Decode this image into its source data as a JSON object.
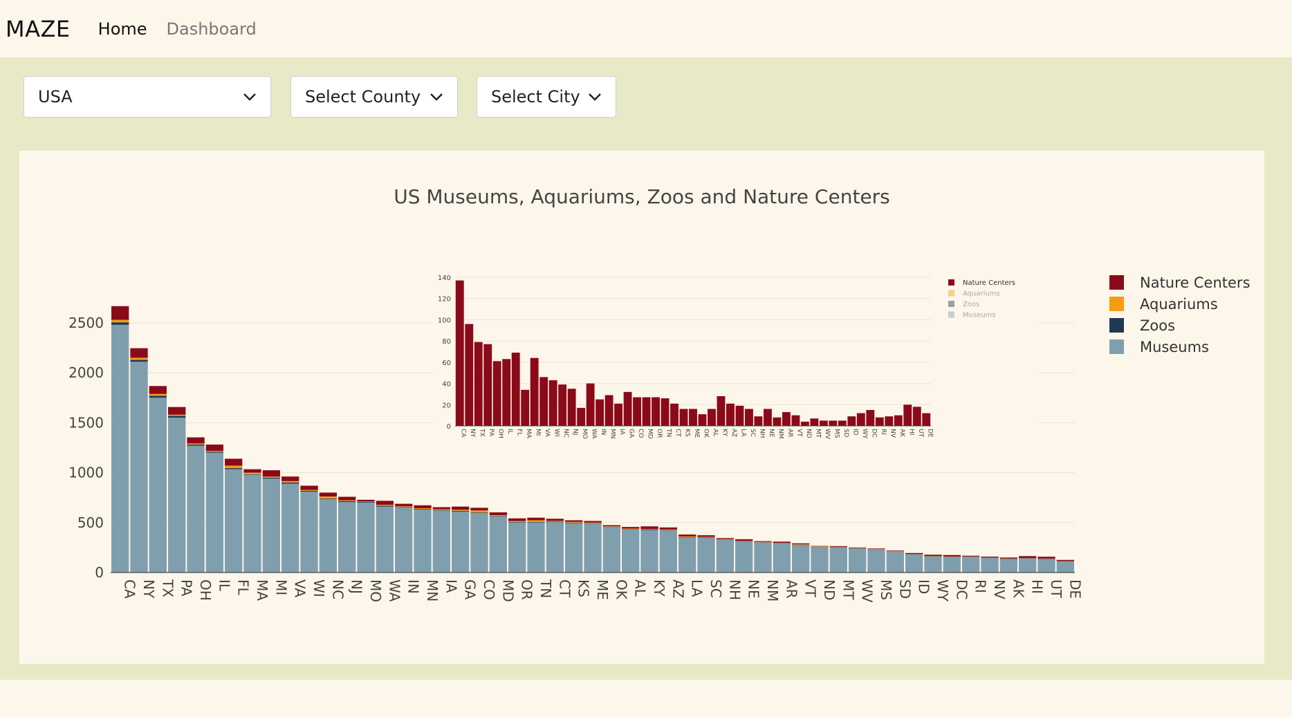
{
  "navbar": {
    "brand": "MAZE",
    "links": [
      "Home",
      "Dashboard"
    ]
  },
  "filters": {
    "country": "USA",
    "county": "Select County",
    "city": "Select City"
  },
  "colors": {
    "nature": "#8b0a1a",
    "aquariums": "#f59c12",
    "zoos": "#1e3a52",
    "museums": "#7f9fae"
  },
  "chart_data": [
    {
      "type": "bar",
      "stacked": true,
      "title": "US Museums, Aquariums, Zoos and Nature Centers",
      "ylim": [
        0,
        2700
      ],
      "yticks": [
        0,
        500,
        1000,
        1500,
        2000,
        2500
      ],
      "legend_position": "right",
      "categories": [
        "CA",
        "NY",
        "TX",
        "PA",
        "OH",
        "IL",
        "FL",
        "MA",
        "MI",
        "VA",
        "WI",
        "NC",
        "NJ",
        "MO",
        "WA",
        "IN",
        "MN",
        "IA",
        "GA",
        "CO",
        "MD",
        "OR",
        "TN",
        "CT",
        "KS",
        "ME",
        "OK",
        "AL",
        "KY",
        "AZ",
        "LA",
        "SC",
        "NH",
        "NE",
        "NM",
        "AR",
        "VT",
        "ND",
        "MT",
        "WV",
        "MS",
        "SD",
        "ID",
        "WY",
        "DC",
        "RI",
        "NV",
        "AK",
        "HI",
        "UT",
        "DE"
      ],
      "series": [
        {
          "name": "Museums",
          "values": [
            2480,
            2110,
            1750,
            1550,
            1270,
            1200,
            1035,
            980,
            940,
            890,
            810,
            735,
            705,
            700,
            660,
            650,
            630,
            620,
            610,
            595,
            560,
            500,
            500,
            505,
            495,
            490,
            455,
            430,
            425,
            420,
            350,
            350,
            330,
            310,
            300,
            290,
            275,
            255,
            250,
            240,
            230,
            210,
            180,
            160,
            155,
            155,
            145,
            135,
            140,
            135,
            110
          ]
        },
        {
          "name": "Zoos",
          "values": [
            25,
            20,
            20,
            18,
            12,
            10,
            10,
            5,
            10,
            10,
            8,
            6,
            10,
            6,
            8,
            5,
            6,
            5,
            8,
            6,
            5,
            5,
            5,
            4,
            4,
            4,
            4,
            4,
            5,
            4,
            3,
            4,
            3,
            4,
            3,
            3,
            3,
            3,
            4,
            3,
            3,
            3,
            3,
            3,
            3,
            3,
            3,
            3,
            2,
            3,
            2
          ]
        },
        {
          "name": "Aquariums",
          "values": [
            25,
            20,
            18,
            12,
            10,
            8,
            25,
            15,
            10,
            15,
            8,
            20,
            8,
            5,
            10,
            8,
            8,
            8,
            10,
            20,
            10,
            10,
            18,
            8,
            8,
            6,
            4,
            6,
            4,
            6,
            8,
            3,
            3,
            3,
            3,
            3,
            4,
            4,
            3,
            3,
            3,
            3,
            3,
            3,
            2,
            2,
            2,
            2,
            2,
            2,
            2
          ]
        },
        {
          "name": "Nature Centers",
          "values": [
            137,
            96,
            79,
            77,
            61,
            63,
            69,
            34,
            64,
            46,
            43,
            39,
            35,
            17,
            40,
            25,
            29,
            21,
            32,
            27,
            27,
            27,
            26,
            21,
            16,
            16,
            11,
            16,
            28,
            21,
            19,
            16,
            9,
            16,
            8,
            13,
            10,
            4,
            7,
            5,
            5,
            5,
            9,
            12,
            15,
            8,
            9,
            10,
            20,
            18,
            12
          ]
        }
      ]
    },
    {
      "type": "bar",
      "inset": true,
      "ylim": [
        0,
        140
      ],
      "yticks": [
        0,
        20,
        40,
        60,
        80,
        100,
        120,
        140
      ],
      "categories": [
        "CA",
        "NY",
        "TX",
        "PA",
        "OH",
        "IL",
        "FL",
        "MA",
        "MI",
        "VA",
        "WI",
        "NC",
        "NJ",
        "MO",
        "WA",
        "IN",
        "MN",
        "IA",
        "GA",
        "CO",
        "MD",
        "OR",
        "TN",
        "CT",
        "KS",
        "ME",
        "OK",
        "AL",
        "KY",
        "AZ",
        "LA",
        "SC",
        "NH",
        "NE",
        "NM",
        "AR",
        "VT",
        "ND",
        "MT",
        "WV",
        "MS",
        "SD",
        "ID",
        "WY",
        "DC",
        "RI",
        "NV",
        "AK",
        "HI",
        "UT",
        "DE"
      ],
      "series": [
        {
          "name": "Nature Centers",
          "values": [
            137,
            96,
            79,
            77,
            61,
            63,
            69,
            34,
            64,
            46,
            43,
            39,
            35,
            17,
            40,
            25,
            29,
            21,
            32,
            27,
            27,
            27,
            26,
            21,
            16,
            16,
            11,
            16,
            28,
            21,
            19,
            16,
            9,
            16,
            8,
            13,
            10,
            4,
            7,
            5,
            5,
            5,
            9,
            12,
            15,
            8,
            9,
            10,
            20,
            18,
            12
          ]
        }
      ],
      "legend": [
        "Nature Centers",
        "Aquariums",
        "Zoos",
        "Museums"
      ]
    }
  ]
}
